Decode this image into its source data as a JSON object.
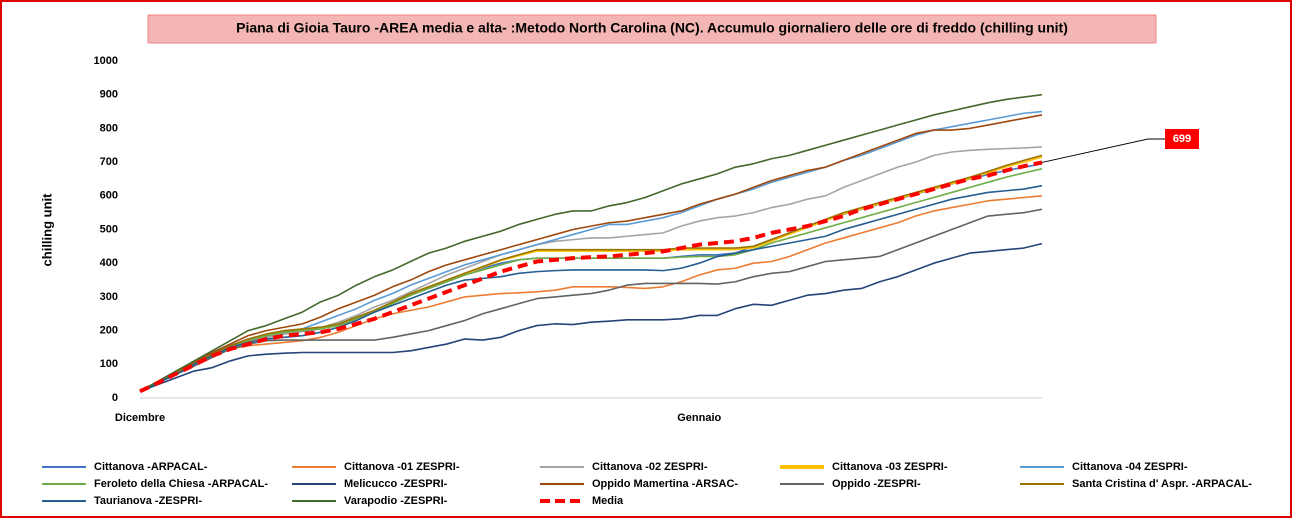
{
  "chart_data": {
    "type": "line",
    "title": "Piana di Gioia Tauro -AREA media e alta- :Metodo North Carolina (NC).  Accumulo  giornaliero  delle ore di freddo (chilling unit)",
    "y_label": "chilling unit",
    "categories": [
      "Dicembre",
      null,
      null,
      null,
      null,
      null,
      null,
      null,
      null,
      null,
      null,
      null,
      null,
      null,
      null,
      null,
      null,
      null,
      null,
      null,
      null,
      null,
      null,
      null,
      null,
      null,
      null,
      null,
      null,
      null,
      null,
      "Gennaio",
      null,
      null,
      null,
      null,
      null,
      null,
      null,
      null,
      null,
      null,
      null,
      null,
      null,
      null,
      null,
      null,
      null,
      null,
      null
    ],
    "ylim": [
      0,
      1000
    ],
    "yticks": [
      0,
      100,
      200,
      300,
      400,
      500,
      600,
      700,
      800,
      900,
      1000
    ],
    "grid": false,
    "series": [
      {
        "name": "Cittanova -ARPACAL-",
        "color": "#4472c4",
        "values": [
          20,
          45,
          73,
          100,
          128,
          150,
          168,
          180,
          190,
          198,
          205,
          218,
          238,
          260,
          282,
          305,
          325,
          345,
          365,
          385,
          400,
          410,
          415,
          415,
          415,
          415,
          415,
          415,
          415,
          415,
          420,
          425,
          425,
          430,
          450,
          470,
          490,
          510,
          530,
          545,
          560,
          575,
          590,
          605,
          620,
          635,
          650,
          663,
          675,
          685,
          695
        ]
      },
      {
        "name": "Cittanova -01 ZESPRI-",
        "color": "#ed7d31",
        "values": [
          20,
          45,
          72,
          98,
          125,
          145,
          155,
          160,
          165,
          170,
          180,
          195,
          215,
          235,
          250,
          260,
          270,
          285,
          300,
          305,
          310,
          312,
          315,
          320,
          330,
          330,
          330,
          328,
          325,
          330,
          345,
          365,
          380,
          385,
          400,
          405,
          420,
          440,
          460,
          475,
          490,
          505,
          520,
          540,
          555,
          565,
          575,
          585,
          590,
          595,
          600
        ]
      },
      {
        "name": "Cittanova -02 ZESPRI-",
        "color": "#a5a5a5",
        "values": [
          20,
          45,
          74,
          100,
          128,
          150,
          168,
          180,
          190,
          198,
          208,
          225,
          245,
          270,
          290,
          315,
          340,
          365,
          385,
          405,
          425,
          440,
          455,
          465,
          470,
          475,
          475,
          480,
          485,
          490,
          510,
          525,
          535,
          540,
          550,
          565,
          575,
          590,
          600,
          625,
          645,
          665,
          685,
          700,
          720,
          730,
          735,
          738,
          740,
          742,
          745
        ]
      },
      {
        "name": "Cittanova -03 ZESPRI-",
        "color": "#ffc000",
        "values": [
          20,
          45,
          74,
          101,
          129,
          153,
          173,
          188,
          198,
          203,
          208,
          218,
          238,
          258,
          283,
          308,
          328,
          348,
          368,
          388,
          408,
          422,
          436,
          436,
          436,
          436,
          436,
          436,
          436,
          436,
          440,
          440,
          440,
          440,
          446,
          466,
          486,
          506,
          526,
          546,
          561,
          576,
          591,
          606,
          621,
          636,
          651,
          668,
          686,
          700,
          715
        ]
      },
      {
        "name": "Cittanova -04 ZESPRI-",
        "color": "#5b9bd5",
        "values": [
          20,
          45,
          75,
          100,
          130,
          155,
          175,
          185,
          195,
          205,
          225,
          245,
          265,
          290,
          310,
          335,
          355,
          375,
          395,
          410,
          425,
          440,
          455,
          470,
          485,
          500,
          515,
          515,
          525,
          535,
          550,
          570,
          590,
          605,
          620,
          640,
          655,
          670,
          685,
          705,
          720,
          740,
          760,
          780,
          795,
          805,
          815,
          825,
          835,
          845,
          850
        ]
      },
      {
        "name": "Feroleto della Chiesa -ARPACAL-",
        "color": "#70ad47",
        "values": [
          20,
          45,
          72,
          100,
          128,
          150,
          170,
          185,
          195,
          200,
          205,
          215,
          235,
          255,
          280,
          305,
          325,
          345,
          365,
          380,
          395,
          410,
          415,
          415,
          415,
          415,
          415,
          415,
          415,
          415,
          418,
          420,
          420,
          425,
          440,
          460,
          475,
          490,
          505,
          520,
          535,
          550,
          565,
          580,
          595,
          610,
          625,
          640,
          655,
          668,
          680
        ]
      },
      {
        "name": "Melicucco -ZESPRI-",
        "color": "#264478",
        "values": [
          20,
          40,
          60,
          80,
          90,
          110,
          125,
          130,
          133,
          135,
          135,
          135,
          135,
          135,
          135,
          140,
          150,
          160,
          175,
          172,
          180,
          200,
          215,
          220,
          218,
          225,
          228,
          232,
          232,
          232,
          235,
          245,
          245,
          265,
          278,
          275,
          290,
          305,
          310,
          320,
          325,
          345,
          360,
          380,
          400,
          415,
          430,
          435,
          440,
          445,
          458
        ]
      },
      {
        "name": "Oppido Mamertina -ARSAC-",
        "color": "#9e480e",
        "values": [
          20,
          48,
          78,
          105,
          135,
          160,
          185,
          200,
          210,
          220,
          240,
          265,
          285,
          305,
          330,
          350,
          375,
          395,
          410,
          425,
          440,
          455,
          470,
          485,
          500,
          510,
          520,
          525,
          535,
          545,
          555,
          575,
          590,
          605,
          625,
          645,
          660,
          675,
          685,
          705,
          725,
          745,
          765,
          785,
          795,
          795,
          800,
          810,
          820,
          830,
          840
        ]
      },
      {
        "name": "Oppido -ZESPRI-",
        "color": "#636363",
        "values": [
          20,
          45,
          70,
          95,
          120,
          145,
          160,
          170,
          172,
          172,
          172,
          172,
          172,
          172,
          180,
          190,
          200,
          215,
          230,
          250,
          265,
          280,
          295,
          300,
          305,
          310,
          320,
          335,
          340,
          340,
          340,
          340,
          338,
          345,
          360,
          370,
          375,
          390,
          405,
          410,
          415,
          420,
          440,
          460,
          480,
          500,
          520,
          540,
          545,
          550,
          560
        ]
      },
      {
        "name": "Santa Cristina d' Aspr. -ARPACAL-",
        "color": "#997300",
        "values": [
          20,
          45,
          75,
          102,
          130,
          155,
          175,
          190,
          200,
          205,
          210,
          220,
          240,
          260,
          285,
          310,
          330,
          350,
          370,
          390,
          410,
          425,
          440,
          440,
          440,
          440,
          440,
          440,
          440,
          440,
          445,
          445,
          445,
          445,
          450,
          470,
          490,
          510,
          530,
          550,
          565,
          580,
          595,
          610,
          625,
          640,
          655,
          672,
          690,
          705,
          720
        ]
      },
      {
        "name": "Taurianova -ZESPRI-",
        "color": "#255e91",
        "values": [
          20,
          45,
          70,
          100,
          125,
          150,
          165,
          175,
          180,
          185,
          195,
          210,
          230,
          255,
          275,
          295,
          315,
          335,
          350,
          355,
          360,
          370,
          375,
          378,
          380,
          380,
          380,
          380,
          380,
          378,
          385,
          400,
          420,
          430,
          440,
          450,
          460,
          470,
          480,
          500,
          515,
          530,
          545,
          560,
          575,
          590,
          600,
          610,
          615,
          620,
          630
        ]
      },
      {
        "name": "Varapodio -ZESPRI-",
        "color": "#43682b",
        "values": [
          20,
          50,
          80,
          110,
          140,
          170,
          200,
          215,
          235,
          255,
          285,
          305,
          335,
          360,
          380,
          405,
          430,
          445,
          465,
          480,
          495,
          515,
          530,
          545,
          555,
          555,
          570,
          580,
          595,
          615,
          635,
          650,
          665,
          685,
          695,
          710,
          720,
          735,
          750,
          765,
          780,
          795,
          810,
          825,
          840,
          852,
          864,
          876,
          886,
          893,
          900
        ]
      },
      {
        "name": "Media",
        "color": "#ff0000",
        "dashed": true,
        "values": [
          20,
          45,
          72,
          98,
          125,
          145,
          160,
          175,
          185,
          190,
          195,
          205,
          220,
          235,
          255,
          275,
          295,
          315,
          335,
          355,
          375,
          390,
          405,
          410,
          415,
          418,
          420,
          425,
          430,
          435,
          445,
          455,
          460,
          465,
          475,
          490,
          500,
          510,
          525,
          540,
          560,
          575,
          590,
          605,
          620,
          635,
          650,
          660,
          675,
          688,
          699
        ]
      }
    ]
  }
}
